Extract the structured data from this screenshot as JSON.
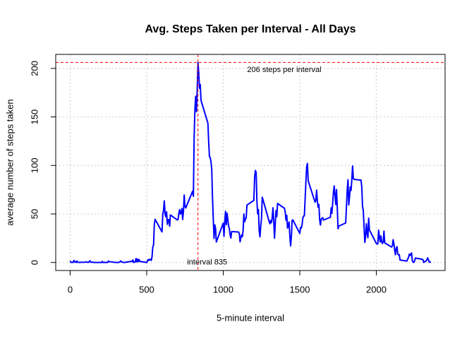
{
  "chart_data": {
    "type": "line",
    "title": "Avg. Steps Taken per Interval - All Days",
    "x_label": "5-minute interval",
    "y_label": "average number of steps taken",
    "x": [
      0,
      5,
      10,
      15,
      20,
      25,
      30,
      35,
      40,
      45,
      50,
      55,
      100,
      105,
      110,
      115,
      120,
      125,
      130,
      135,
      140,
      145,
      150,
      155,
      200,
      205,
      210,
      215,
      220,
      225,
      230,
      235,
      240,
      245,
      250,
      255,
      300,
      305,
      310,
      315,
      320,
      325,
      330,
      335,
      340,
      345,
      350,
      355,
      400,
      405,
      410,
      415,
      420,
      425,
      430,
      435,
      440,
      445,
      450,
      455,
      500,
      505,
      510,
      515,
      520,
      525,
      530,
      535,
      540,
      545,
      550,
      555,
      600,
      605,
      610,
      615,
      620,
      625,
      630,
      635,
      640,
      645,
      650,
      655,
      700,
      705,
      710,
      715,
      720,
      725,
      730,
      735,
      740,
      745,
      750,
      755,
      800,
      805,
      810,
      815,
      820,
      825,
      830,
      835,
      840,
      845,
      850,
      855,
      900,
      905,
      910,
      915,
      920,
      925,
      930,
      935,
      940,
      945,
      950,
      955,
      1000,
      1005,
      1010,
      1015,
      1020,
      1025,
      1030,
      1035,
      1040,
      1045,
      1050,
      1055,
      1100,
      1105,
      1110,
      1115,
      1120,
      1125,
      1130,
      1135,
      1140,
      1145,
      1150,
      1155,
      1200,
      1205,
      1210,
      1215,
      1220,
      1225,
      1230,
      1235,
      1240,
      1245,
      1250,
      1255,
      1300,
      1305,
      1310,
      1315,
      1320,
      1325,
      1330,
      1335,
      1340,
      1345,
      1350,
      1355,
      1400,
      1405,
      1410,
      1415,
      1420,
      1425,
      1430,
      1435,
      1440,
      1445,
      1450,
      1455,
      1500,
      1505,
      1510,
      1515,
      1520,
      1525,
      1530,
      1535,
      1540,
      1545,
      1550,
      1555,
      1600,
      1605,
      1610,
      1615,
      1620,
      1625,
      1630,
      1635,
      1640,
      1645,
      1650,
      1655,
      1700,
      1705,
      1710,
      1715,
      1720,
      1725,
      1730,
      1735,
      1740,
      1745,
      1750,
      1755,
      1800,
      1805,
      1810,
      1815,
      1820,
      1825,
      1830,
      1835,
      1840,
      1845,
      1850,
      1855,
      1900,
      1905,
      1910,
      1915,
      1920,
      1925,
      1930,
      1935,
      1940,
      1945,
      1950,
      1955,
      2000,
      2005,
      2010,
      2015,
      2020,
      2025,
      2030,
      2035,
      2040,
      2045,
      2050,
      2055,
      2100,
      2105,
      2110,
      2115,
      2120,
      2125,
      2130,
      2135,
      2140,
      2145,
      2150,
      2155,
      2200,
      2205,
      2210,
      2215,
      2220,
      2225,
      2230,
      2235,
      2240,
      2245,
      2250,
      2255,
      2300,
      2305,
      2310,
      2315,
      2320,
      2325,
      2330,
      2335,
      2340,
      2345,
      2350,
      2355
    ],
    "values": [
      1.7,
      0.3,
      0.1,
      0.2,
      0.1,
      2.1,
      0.5,
      0.9,
      0,
      1.5,
      0.3,
      0.1,
      0.3,
      0.7,
      0.2,
      0.3,
      0,
      1.1,
      1.8,
      0.2,
      0.2,
      0.4,
      0.3,
      0,
      0,
      0,
      1.1,
      0,
      0,
      0.1,
      0,
      0.2,
      0,
      0,
      1.5,
      0.9,
      0,
      0,
      0,
      0,
      0.2,
      0.6,
      1.6,
      0.6,
      0.5,
      0.1,
      0,
      0,
      1.2,
      0.9,
      2.6,
      0,
      0.3,
      0.4,
      4.1,
      0.7,
      3.5,
      0.8,
      3.1,
      1.1,
      0,
      1.6,
      3,
      2.2,
      3.3,
      3,
      2.1,
      6.1,
      16,
      18.3,
      39.5,
      44.5,
      31.5,
      49.3,
      53.8,
      63.5,
      50,
      47.1,
      52.2,
      39.3,
      44,
      44.2,
      37.4,
      49,
      43.8,
      44.4,
      50.5,
      54.5,
      49.9,
      51,
      55.7,
      44.3,
      52.3,
      69.5,
      57.8,
      56.2,
      73.4,
      68.2,
      129.4,
      157.5,
      171.2,
      155.4,
      177.3,
      206.2,
      195.9,
      179.6,
      183.4,
      167,
      143.5,
      124,
      109.1,
      108.1,
      103.7,
      96,
      66.2,
      45.2,
      24.8,
      38.8,
      35,
      21.1,
      40.6,
      27,
      42.4,
      52.7,
      38.9,
      50.8,
      44.3,
      37.4,
      34.7,
      28.3,
      25.1,
      31.9,
      31.4,
      29.7,
      21.3,
      25.5,
      28.4,
      26.5,
      33.4,
      50,
      42,
      44.6,
      46,
      59.2,
      63.9,
      87.7,
      94.8,
      92.8,
      63.4,
      50.2,
      54.5,
      32.4,
      26.5,
      37.7,
      45.1,
      67.3,
      42.3,
      39.9,
      43.3,
      41,
      46.2,
      56.4,
      42.8,
      25.1,
      40,
      53.5,
      47.3,
      60.8,
      55.8,
      52,
      43.6,
      48.7,
      35.5,
      37.5,
      41.8,
      27.5,
      17.1,
      26.1,
      43.6,
      43.8,
      30,
      36.1,
      35.5,
      38.8,
      46,
      47.8,
      48.1,
      65.3,
      82.9,
      98.7,
      102.1,
      84,
      62.1,
      64.1,
      74.5,
      63.2,
      56.9,
      59.8,
      43.9,
      38.6,
      44.7,
      45.5,
      46.2,
      43.7,
      46.6,
      56.3,
      50.7,
      61.2,
      72.7,
      78.9,
      68.9,
      59.7,
      75.1,
      56.5,
      34.8,
      37.5,
      40.7,
      58,
      74.7,
      85.3,
      59.3,
      67.8,
      77.7,
      74.2,
      85.3,
      99.5,
      86.6,
      85.6,
      84.9,
      77.8,
      58,
      53.4,
      36.3,
      20.7,
      27.4,
      40,
      30.2,
      25.5,
      45.7,
      33.5,
      19.6,
      19,
      19.3,
      33.3,
      26.8,
      21.2,
      27.3,
      21.3,
      19.5,
      21.3,
      32.3,
      20.2,
      15.9,
      17.2,
      23.5,
      19.2,
      12.5,
      8,
      14.7,
      16.3,
      8.7,
      7.8,
      8.1,
      2.6,
      1.5,
      3.7,
      4.8,
      8.5,
      7.1,
      8.7,
      9.8,
      2.2,
      0.3,
      0.1,
      1.6,
      4.6,
      3.3,
      2.8,
      0,
      0.8,
      1,
      1.6,
      2.6,
      4.7,
      3.3,
      0.6,
      0.2,
      1.1
    ],
    "color": "#0000ff",
    "xlim": [
      -94.2,
      2449.2
    ],
    "ylim": [
      -8.25,
      214.45
    ],
    "xticks": [
      0,
      500,
      1000,
      1500,
      2000
    ],
    "yticks": [
      0,
      50,
      100,
      150,
      200
    ],
    "grid": true,
    "reference_lines": {
      "color": "#ff0000",
      "y": 206.2,
      "x": 835
    },
    "annotations": [
      "206 steps per interval",
      "interval 835"
    ]
  }
}
